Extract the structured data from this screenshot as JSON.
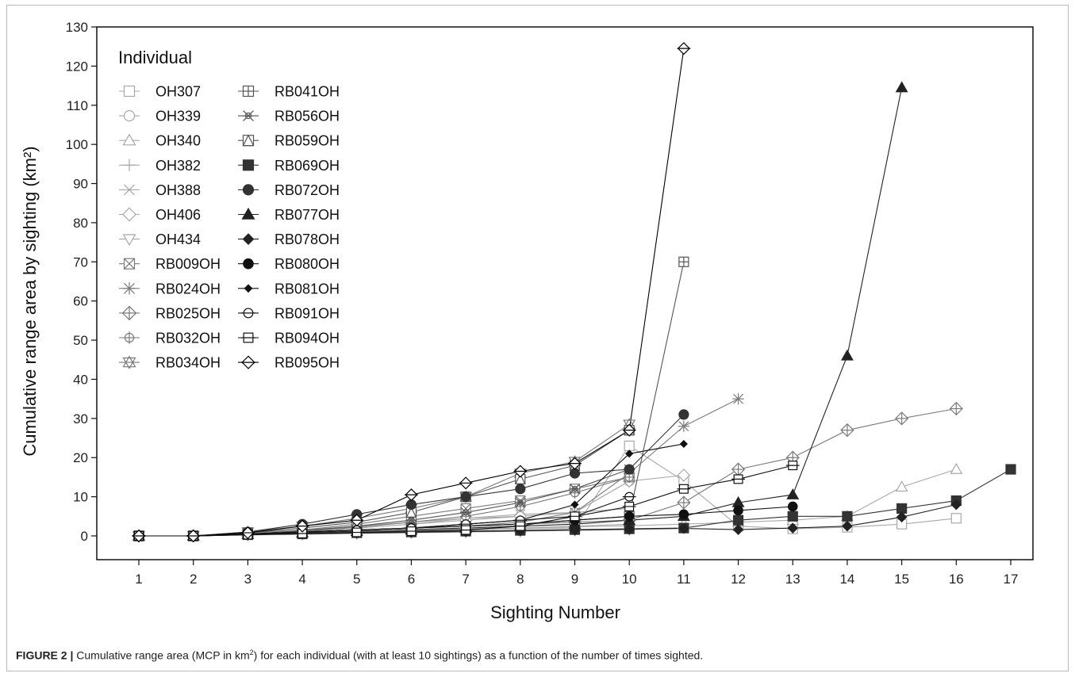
{
  "chart_data": {
    "type": "line",
    "title": "",
    "xlabel": "Sighting Number",
    "ylabel": "Cumulative range area by sighting (km²)",
    "xlim": [
      1,
      17
    ],
    "ylim": [
      0,
      130
    ],
    "x_ticks": [
      1,
      2,
      3,
      4,
      5,
      6,
      7,
      8,
      9,
      10,
      11,
      12,
      13,
      14,
      15,
      16,
      17
    ],
    "y_ticks": [
      0,
      10,
      20,
      30,
      40,
      50,
      60,
      70,
      80,
      90,
      100,
      110,
      120,
      130
    ],
    "grid": false,
    "legend": {
      "title": "Individual",
      "position": "top-left",
      "columns": 2
    },
    "series": [
      {
        "name": "OH307",
        "color": "#a8a8a8",
        "marker": "square-open",
        "x": [
          1,
          2,
          3,
          4,
          5,
          6,
          7,
          8,
          9,
          10,
          11,
          12,
          13,
          14,
          15,
          16
        ],
        "y": [
          0,
          0,
          0.4,
          0.8,
          1.0,
          1.3,
          1.6,
          1.8,
          2.0,
          23,
          14,
          2.5,
          1.8,
          2.2,
          3.0,
          4.5
        ]
      },
      {
        "name": "OH339",
        "color": "#a8a8a8",
        "marker": "circle-open",
        "x": [
          1,
          2,
          3,
          4,
          5,
          6,
          7,
          8,
          9,
          10
        ],
        "y": [
          0,
          0,
          0.5,
          1.2,
          2.0,
          3.0,
          4.5,
          5.0,
          6.0,
          14
        ]
      },
      {
        "name": "OH340",
        "color": "#a8a8a8",
        "marker": "triangle-up-open",
        "x": [
          1,
          2,
          3,
          4,
          5,
          6,
          7,
          8,
          9,
          10,
          11,
          12,
          13,
          14,
          15,
          16
        ],
        "y": [
          0,
          0,
          0.4,
          0.8,
          1.1,
          1.4,
          1.8,
          2.0,
          2.3,
          2.6,
          3.0,
          3.5,
          4.0,
          5.0,
          12.5,
          17
        ]
      },
      {
        "name": "OH382",
        "color": "#a8a8a8",
        "marker": "plus",
        "x": [
          1,
          2,
          3,
          4,
          5,
          6,
          7,
          8,
          9,
          10
        ],
        "y": [
          0,
          0,
          0.3,
          0.6,
          0.8,
          1.0,
          1.3,
          2.0,
          2.5,
          3.0
        ]
      },
      {
        "name": "OH388",
        "color": "#a8a8a8",
        "marker": "cross",
        "x": [
          1,
          2,
          3,
          4,
          5,
          6,
          7,
          8,
          9,
          10
        ],
        "y": [
          0,
          0,
          0.8,
          1.5,
          2.5,
          3.5,
          4.5,
          5.5,
          6.0,
          7.0
        ]
      },
      {
        "name": "OH406",
        "color": "#a8a8a8",
        "marker": "diamond-open",
        "x": [
          1,
          2,
          3,
          4,
          5,
          6,
          7,
          8,
          9,
          10,
          11
        ],
        "y": [
          0,
          0,
          0.5,
          1.0,
          2.0,
          3.0,
          4.0,
          5.0,
          6.0,
          14,
          15.5
        ]
      },
      {
        "name": "OH434",
        "color": "#a8a8a8",
        "marker": "triangle-down-open",
        "x": [
          1,
          2,
          3,
          4,
          5,
          6,
          7,
          8,
          9,
          10
        ],
        "y": [
          0,
          0,
          0.2,
          0.4,
          0.6,
          0.8,
          1.0,
          1.2,
          1.4,
          1.6
        ]
      },
      {
        "name": "RB009OH",
        "color": "#7a7a7a",
        "marker": "square-x",
        "x": [
          1,
          2,
          3,
          4,
          5,
          6,
          7,
          8,
          9,
          10
        ],
        "y": [
          0,
          0,
          0.8,
          1.5,
          3.0,
          5.0,
          7.0,
          9.0,
          12,
          15
        ]
      },
      {
        "name": "RB024OH",
        "color": "#7a7a7a",
        "marker": "asterisk",
        "x": [
          1,
          2,
          3,
          4,
          5,
          6,
          7,
          8,
          9,
          10,
          11,
          12
        ],
        "y": [
          0,
          0,
          0.5,
          1.0,
          1.5,
          2.0,
          2.5,
          3.5,
          6.0,
          16,
          28,
          35
        ]
      },
      {
        "name": "RB025OH",
        "color": "#7a7a7a",
        "marker": "diamond-plus",
        "x": [
          1,
          2,
          3,
          4,
          5,
          6,
          7,
          8,
          9,
          10,
          11,
          12,
          13,
          14,
          15,
          16
        ],
        "y": [
          0,
          0,
          0.5,
          1.0,
          1.5,
          2.0,
          2.5,
          3.0,
          3.5,
          4.0,
          8.5,
          17,
          20,
          27,
          30,
          32.5
        ]
      },
      {
        "name": "RB032OH",
        "color": "#7a7a7a",
        "marker": "circle-plus",
        "x": [
          1,
          2,
          3,
          4,
          5,
          6,
          7,
          8,
          9,
          10
        ],
        "y": [
          0,
          0,
          0.6,
          1.2,
          2.2,
          3.5,
          5.0,
          7.5,
          11,
          15
        ]
      },
      {
        "name": "RB034OH",
        "color": "#7a7a7a",
        "marker": "star-of-david",
        "x": [
          1,
          2,
          3,
          4,
          5,
          6,
          7,
          8,
          9,
          10
        ],
        "y": [
          0,
          0,
          1.0,
          2.5,
          4.5,
          7.0,
          10,
          16,
          19,
          28.5
        ]
      },
      {
        "name": "RB041OH",
        "color": "#555555",
        "marker": "square-plus",
        "x": [
          1,
          2,
          3,
          4,
          5,
          6,
          7,
          8,
          9,
          10,
          11
        ],
        "y": [
          0,
          0,
          0.5,
          1.0,
          1.5,
          2.0,
          2.5,
          3.0,
          4.0,
          5.0,
          70
        ]
      },
      {
        "name": "RB056OH",
        "color": "#555555",
        "marker": "circle-star",
        "x": [
          1,
          2,
          3,
          4,
          5,
          6,
          7,
          8,
          9,
          10
        ],
        "y": [
          0,
          0,
          0.5,
          1.3,
          2.5,
          4.0,
          6.0,
          8.5,
          12,
          17
        ]
      },
      {
        "name": "RB059OH",
        "color": "#555555",
        "marker": "square-triangle",
        "x": [
          1,
          2,
          3,
          4,
          5,
          6,
          7,
          8,
          9,
          10
        ],
        "y": [
          0,
          0,
          0.8,
          2.0,
          3.5,
          6.0,
          10,
          14.5,
          18,
          27
        ]
      },
      {
        "name": "RB069OH",
        "color": "#333333",
        "marker": "square-filled",
        "x": [
          1,
          2,
          3,
          4,
          5,
          6,
          7,
          8,
          9,
          10,
          11,
          12,
          13,
          14,
          15,
          16,
          17
        ],
        "y": [
          0,
          0,
          0.3,
          0.5,
          0.8,
          1.0,
          1.2,
          1.4,
          1.6,
          1.8,
          2.0,
          4.0,
          5.0,
          5.0,
          7.0,
          9.0,
          17
        ]
      },
      {
        "name": "RB072OH",
        "color": "#333333",
        "marker": "circle-filled",
        "x": [
          1,
          2,
          3,
          4,
          5,
          6,
          7,
          8,
          9,
          10,
          11
        ],
        "y": [
          0,
          0,
          1.0,
          3.0,
          5.5,
          8.0,
          10,
          12,
          16,
          17,
          31
        ]
      },
      {
        "name": "RB077OH",
        "color": "#222222",
        "marker": "triangle-up-filled",
        "x": [
          1,
          2,
          3,
          4,
          5,
          6,
          7,
          8,
          9,
          10,
          11,
          12,
          13,
          14,
          15
        ],
        "y": [
          0,
          0,
          0.4,
          0.8,
          1.2,
          1.6,
          2.0,
          2.5,
          3.0,
          4.0,
          5.0,
          8.5,
          10.5,
          46,
          114.5
        ]
      },
      {
        "name": "RB078OH",
        "color": "#222222",
        "marker": "diamond-filled",
        "x": [
          1,
          2,
          3,
          4,
          5,
          6,
          7,
          8,
          9,
          10,
          11,
          12,
          13,
          14,
          15,
          16
        ],
        "y": [
          0,
          0,
          0.3,
          0.5,
          0.7,
          0.9,
          1.1,
          1.3,
          1.5,
          1.7,
          1.9,
          1.6,
          2.0,
          2.5,
          4.8,
          8.0
        ]
      },
      {
        "name": "RB080OH",
        "color": "#111111",
        "marker": "octagon-filled",
        "x": [
          1,
          2,
          3,
          4,
          5,
          6,
          7,
          8,
          9,
          10,
          11,
          12,
          13
        ],
        "y": [
          0,
          0,
          0.5,
          1.0,
          1.5,
          2.0,
          2.5,
          3.0,
          4.0,
          5.0,
          5.5,
          6.5,
          7.5
        ]
      },
      {
        "name": "RB081OH",
        "color": "#111111",
        "marker": "diamond-small-filled",
        "x": [
          1,
          2,
          3,
          4,
          5,
          6,
          7,
          8,
          9,
          10,
          11
        ],
        "y": [
          0,
          0,
          0.5,
          1.0,
          1.5,
          2.0,
          3.0,
          4.0,
          8.0,
          21,
          23.5
        ]
      },
      {
        "name": "RB091OH",
        "color": "#111111",
        "marker": "circle-line",
        "x": [
          1,
          2,
          3,
          4,
          5,
          6,
          7,
          8,
          9,
          10
        ],
        "y": [
          0,
          0,
          0.5,
          1.0,
          1.5,
          2.0,
          3.0,
          4.0,
          5.0,
          10
        ]
      },
      {
        "name": "RB094OH",
        "color": "#111111",
        "marker": "square-line",
        "x": [
          1,
          2,
          3,
          4,
          5,
          6,
          7,
          8,
          9,
          10,
          11,
          12,
          13
        ],
        "y": [
          0,
          0,
          0.3,
          0.6,
          0.9,
          1.2,
          1.5,
          2.5,
          5.0,
          7.5,
          12,
          14.5,
          18
        ]
      },
      {
        "name": "RB095OH",
        "color": "#000000",
        "marker": "diamond-line",
        "x": [
          1,
          2,
          3,
          4,
          5,
          6,
          7,
          8,
          9,
          10,
          11
        ],
        "y": [
          0,
          0,
          0.8,
          2.5,
          4.0,
          10.5,
          13.5,
          16.5,
          18.5,
          27,
          124.5
        ]
      }
    ]
  },
  "caption": {
    "label": "FIGURE 2 |",
    "text": " Cumulative range area (MCP in km",
    "superscript": "2",
    "text_end": ") for each individual (with at least 10 sightings) as a function of the number of times sighted."
  }
}
